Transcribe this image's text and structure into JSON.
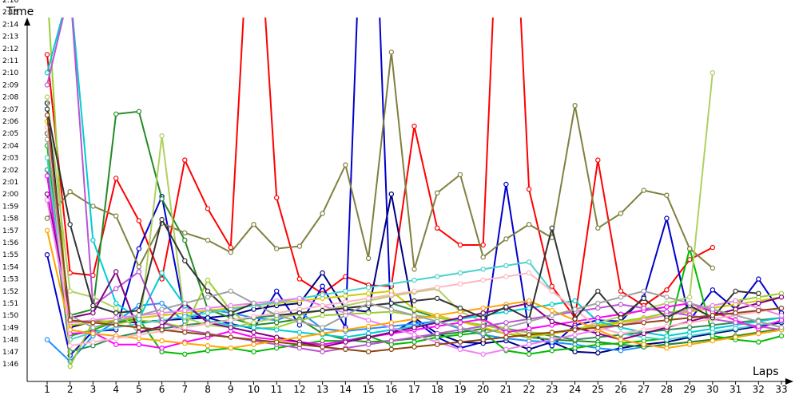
{
  "chart_data": {
    "type": "line",
    "xlabel": "Laps",
    "ylabel": "Time",
    "x": [
      1,
      2,
      3,
      4,
      5,
      6,
      7,
      8,
      9,
      10,
      11,
      12,
      13,
      14,
      15,
      16,
      17,
      18,
      19,
      20,
      21,
      22,
      23,
      24,
      25,
      26,
      27,
      28,
      29,
      30,
      31,
      32,
      33
    ],
    "x_tick_labels": [
      "1",
      "2",
      "3",
      "4",
      "5",
      "6",
      "7",
      "8",
      "9",
      "10",
      "11",
      "12",
      "13",
      "14",
      "15",
      "16",
      "17",
      "18",
      "19",
      "20",
      "21",
      "22",
      "23",
      "24",
      "25",
      "26",
      "27",
      "28",
      "29",
      "30",
      "31",
      "32",
      "33"
    ],
    "y_tick_labels": [
      "1:46",
      "1:47",
      "1:48",
      "1:49",
      "1:50",
      "1:51",
      "1:52",
      "1:53",
      "1:54",
      "1:55",
      "1:56",
      "1:57",
      "1:58",
      "1:59",
      "2:00",
      "2:01",
      "2:02",
      "2:03",
      "2:04",
      "2:05",
      "2:06",
      "2:07",
      "2:08",
      "2:09",
      "2:10",
      "2:11",
      "2:12",
      "2:13",
      "2:14",
      "2:15",
      "2:16"
    ],
    "ylim": [
      105.5,
      137.5
    ],
    "y_unit": "seconds",
    "grid": false,
    "series": [
      {
        "color": "#ff0000",
        "values": [
          131.5,
          113.5,
          113.3,
          121.3,
          117.8,
          113.0,
          122.8,
          118.8,
          115.6,
          150,
          119.7,
          113.0,
          111.8,
          113.2,
          112.5,
          112.4,
          125.6,
          117.2,
          115.8,
          115.8,
          160,
          120.4,
          112.4,
          109.8,
          122.8,
          112.0,
          110.8,
          112.1,
          114.6,
          115.6,
          null,
          null,
          null
        ]
      },
      {
        "color": "#0000cc",
        "values": [
          115.0,
          106.7,
          108.7,
          108.8,
          115.5,
          119.8,
          110.0,
          109.8,
          109.3,
          108.9,
          112.0,
          109.2,
          112.4,
          109.0,
          160,
          108.5,
          109.6,
          108.2,
          107.3,
          107.8,
          120.8,
          108.7,
          107.5,
          109.2,
          109.6,
          109.5,
          111.5,
          118.0,
          109.6,
          112.1,
          110.5,
          113.0,
          110.2
        ]
      },
      {
        "color": "#000080",
        "values": [
          127.5,
          109.0,
          109.5,
          109.5,
          109.4,
          109.6,
          109.7,
          109.8,
          110.0,
          110.5,
          110.8,
          111.0,
          113.5,
          110.5,
          110.3,
          120,
          109.8,
          108.5,
          107.8,
          107.7,
          107.9,
          107.2,
          107.8,
          107.0,
          106.9,
          107.3,
          107.6,
          107.8,
          108.2,
          108.5,
          108.8,
          109.1,
          109.4
        ]
      },
      {
        "color": "#1e90ff",
        "values": [
          108.0,
          106.2,
          108.3,
          109.5,
          110.8,
          111.0,
          109.5,
          110.5,
          110.2,
          109.8,
          109.6,
          110.3,
          108.9,
          108.7,
          108.9,
          109.1,
          109.3,
          109.5,
          108.9,
          108.4,
          108.1,
          107.9,
          107.8,
          107.6,
          107.3,
          107.1,
          107.4,
          107.6,
          107.8,
          108.0,
          108.2,
          108.5,
          108.8
        ]
      },
      {
        "color": "#228b22",
        "values": [
          125.0,
          110.0,
          110.5,
          126.6,
          126.8,
          119.6,
          116.2,
          110.5,
          109.8,
          109.2,
          109.4,
          109.7,
          108.5,
          108.0,
          107.8,
          107.9,
          108.1,
          108.4,
          108.6,
          108.9,
          108.5,
          108.2,
          108.0,
          107.9,
          107.8,
          107.6,
          107.4,
          107.6,
          107.8,
          108.0,
          108.3,
          108.6,
          108.9
        ]
      },
      {
        "color": "#00bb00",
        "values": [
          124.0,
          108.3,
          108.8,
          109.5,
          109.7,
          107.0,
          106.8,
          107.1,
          107.3,
          107.0,
          107.3,
          107.6,
          107.9,
          107.9,
          108.3,
          107.6,
          107.8,
          108.2,
          108.4,
          108.6,
          107.1,
          106.8,
          107.1,
          107.3,
          107.6,
          107.7,
          107.9,
          108.1,
          115.5,
          108.3,
          108.0,
          107.8,
          108.3
        ]
      },
      {
        "color": "#2e8b57",
        "values": [
          122.0,
          107.0,
          107.5,
          108.2,
          108.6,
          108.9,
          109.2,
          109.4,
          109.6,
          109.8,
          110.0,
          110.2,
          110.4,
          110.6,
          110.8,
          111.0,
          110.4,
          109.8,
          109.5,
          109.2,
          108.9,
          108.6,
          108.3,
          108.0,
          108.2,
          108.4,
          108.6,
          108.8,
          109.0,
          109.2,
          109.4,
          109.6,
          109.8
        ]
      },
      {
        "color": "#808040",
        "values": [
          118.0,
          120.2,
          119.0,
          118.2,
          114.0,
          117.6,
          116.8,
          116.2,
          115.2,
          117.5,
          115.5,
          115.7,
          118.4,
          122.4,
          114.7,
          131.7,
          113.8,
          120.1,
          121.6,
          114.8,
          116.3,
          117.5,
          116.4,
          127.3,
          117.2,
          118.4,
          120.3,
          119.9,
          115.5,
          113.9,
          null,
          null,
          null
        ]
      },
      {
        "color": "#9acd32",
        "values": [
          137.0,
          105.8,
          109.5,
          109.3,
          109.6,
          109.4,
          109.0,
          112.9,
          110.4,
          108.9,
          109.0,
          109.6,
          110.0,
          110.1,
          110.2,
          110.3,
          110.0,
          109.8,
          109.5,
          109.2,
          108.8,
          108.6,
          108.5,
          108.9,
          109.2,
          109.5,
          109.8,
          110.2,
          110.5,
          110.8,
          111.2,
          111.5,
          111.8
        ]
      },
      {
        "color": "#b0d060",
        "values": [
          128.0,
          112.0,
          111.5,
          110.6,
          108.5,
          124.8,
          109.8,
          109.2,
          109.0,
          109.4,
          109.8,
          110.1,
          110.4,
          110.8,
          111.2,
          111.6,
          111.9,
          112.2,
          110.3,
          109.5,
          108.9,
          108.2,
          108.5,
          108.8,
          109.4,
          109.9,
          110.5,
          111.0,
          111.5,
          130.0,
          null,
          null,
          null
        ]
      },
      {
        "color": "#cccc00",
        "values": [
          126.0,
          109.2,
          109.4,
          109.6,
          109.8,
          110.0,
          110.2,
          110.4,
          110.6,
          110.8,
          111.0,
          111.2,
          111.4,
          111.6,
          111.8,
          112.0,
          110.5,
          110.0,
          109.5,
          109.0,
          108.5,
          108.3,
          108.5,
          108.8,
          109.1,
          109.4,
          109.7,
          110.0,
          110.3,
          110.6,
          110.9,
          111.2,
          111.5
        ]
      },
      {
        "color": "#00ced1",
        "values": [
          130.0,
          137.0,
          116.2,
          111.0,
          109.7,
          113.5,
          110.8,
          109.5,
          109.2,
          109.0,
          108.8,
          108.6,
          108.4,
          108.2,
          108.5,
          108.8,
          109.1,
          109.4,
          109.7,
          110.0,
          110.3,
          110.6,
          110.9,
          111.2,
          109.5,
          109.0,
          108.6,
          108.3,
          108.6,
          108.9,
          109.2,
          109.5,
          109.8
        ]
      },
      {
        "color": "#48d1cc",
        "values": [
          123.0,
          108.0,
          108.6,
          109.0,
          109.3,
          109.6,
          109.9,
          110.2,
          110.5,
          110.8,
          111.1,
          111.4,
          111.7,
          112.0,
          112.3,
          112.6,
          112.9,
          113.2,
          113.5,
          113.8,
          114.1,
          114.4,
          112.0,
          110.5,
          109.0,
          108.5,
          108.2,
          108.0,
          108.3,
          108.6,
          108.9,
          109.2,
          109.5
        ]
      },
      {
        "color": "#ff00ff",
        "values": [
          121.5,
          108.5,
          108.6,
          107.6,
          107.6,
          107.3,
          107.8,
          108.2,
          108.7,
          108.2,
          108.0,
          107.8,
          107.6,
          107.9,
          108.2,
          108.5,
          108.8,
          109.1,
          109.4,
          109.7,
          108.6,
          108.9,
          109.2,
          109.5,
          109.8,
          110.1,
          110.4,
          110.7,
          111.0,
          110.3,
          109.6,
          108.9,
          109.6
        ]
      },
      {
        "color": "#ba55d3",
        "values": [
          129.0,
          137.0,
          110.8,
          112.2,
          113.6,
          109.4,
          108.8,
          108.5,
          108.2,
          107.9,
          107.6,
          107.3,
          107.0,
          107.3,
          107.6,
          107.9,
          108.2,
          108.5,
          108.8,
          109.1,
          109.4,
          109.7,
          110.0,
          110.3,
          110.6,
          110.9,
          110.6,
          110.3,
          110.0,
          109.7,
          109.4,
          109.1,
          108.8
        ]
      },
      {
        "color": "#800080",
        "values": [
          120.0,
          109.8,
          110.2,
          113.6,
          108.6,
          109.1,
          111.0,
          109.4,
          109.0,
          108.6,
          108.2,
          107.8,
          107.4,
          107.8,
          108.2,
          108.6,
          109.0,
          109.4,
          109.8,
          110.2,
          110.6,
          111.0,
          109.5,
          109.0,
          108.5,
          108.0,
          108.5,
          109.0,
          109.5,
          110.0,
          110.5,
          111.0,
          111.5
        ]
      },
      {
        "color": "#ee82ee",
        "values": [
          119.5,
          109.4,
          109.6,
          109.8,
          110.0,
          110.2,
          110.4,
          110.6,
          110.8,
          111.0,
          111.2,
          111.4,
          110.8,
          110.2,
          109.6,
          109.0,
          108.4,
          107.8,
          107.2,
          106.8,
          107.2,
          107.6,
          108.0,
          108.4,
          108.8,
          109.2,
          109.6,
          110.0,
          110.4,
          110.8,
          111.2,
          110.6,
          110.0
        ]
      },
      {
        "color": "#ffa500",
        "values": [
          117.0,
          108.8,
          108.5,
          108.3,
          108.1,
          107.9,
          107.7,
          107.5,
          107.3,
          107.6,
          107.9,
          108.2,
          108.5,
          108.8,
          109.1,
          109.4,
          109.7,
          110.0,
          110.3,
          110.6,
          110.9,
          111.2,
          110.4,
          109.6,
          108.8,
          108.0,
          107.6,
          107.3,
          107.6,
          107.9,
          108.2,
          108.5,
          108.8
        ]
      },
      {
        "color": "#ffb6c1",
        "values": [
          125.5,
          107.5,
          107.8,
          108.1,
          108.4,
          108.7,
          109.0,
          109.3,
          109.6,
          109.9,
          110.2,
          110.5,
          110.8,
          111.1,
          111.4,
          111.7,
          112.0,
          112.3,
          112.6,
          112.9,
          113.2,
          113.5,
          112.0,
          110.5,
          109.0,
          108.5,
          108.8,
          109.1,
          109.4,
          109.7,
          110.0,
          110.3,
          110.6
        ]
      },
      {
        "color": "#333333",
        "values": [
          127.0,
          117.5,
          110.8,
          110.2,
          110.4,
          117.9,
          114.5,
          112.0,
          110.2,
          111.0,
          110.0,
          110.2,
          110.4,
          110.6,
          110.8,
          111.0,
          111.2,
          111.4,
          110.6,
          109.8,
          110.7,
          109.7,
          117.2,
          109.7,
          112.0,
          109.8,
          111.4,
          109.8,
          110.8,
          109.8,
          112.0,
          111.8,
          null
        ]
      },
      {
        "color": "#a0a0a0",
        "values": [
          124.5,
          110.0,
          109.0,
          109.5,
          110.0,
          110.5,
          111.0,
          111.5,
          112.0,
          111.0,
          110.0,
          109.5,
          109.0,
          110.0,
          111.0,
          110.5,
          110.0,
          109.5,
          109.0,
          108.5,
          109.0,
          109.5,
          110.0,
          110.5,
          111.0,
          111.5,
          112.0,
          111.5,
          111.0,
          110.5,
          110.0,
          109.5,
          109.0
        ]
      },
      {
        "color": "#8b4513",
        "values": [
          126.5,
          109.6,
          109.4,
          109.2,
          109.0,
          108.8,
          108.6,
          108.4,
          108.2,
          108.0,
          107.8,
          107.6,
          107.4,
          107.2,
          107.0,
          107.2,
          107.4,
          107.6,
          107.8,
          108.0,
          108.2,
          108.4,
          108.6,
          108.8,
          109.0,
          109.2,
          109.4,
          109.6,
          109.8,
          110.0,
          110.2,
          110.4,
          110.6
        ]
      }
    ]
  }
}
